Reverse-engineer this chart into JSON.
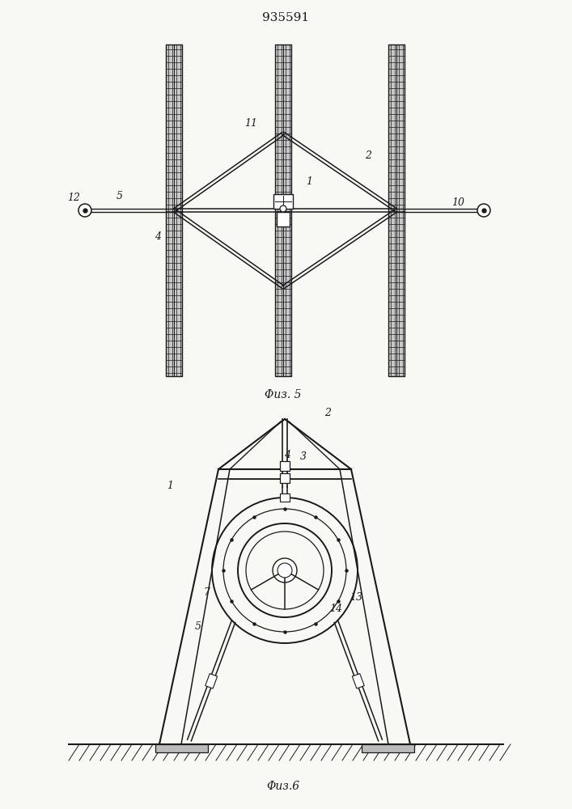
{
  "title": "935591",
  "fig5_label": "Φиз. 5",
  "fig6_label": "Φиз.6",
  "bg_color": "#f8f8f5",
  "line_color": "#1a1a1a"
}
